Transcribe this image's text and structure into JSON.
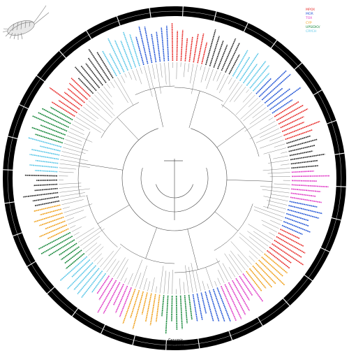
{
  "legend": {
    "items": [
      {
        "label": "MPOX",
        "color": "#e8312f"
      },
      {
        "label": "MOR",
        "color": "#2a5bd7"
      },
      {
        "label": "TOX",
        "color": "#e040c8"
      },
      {
        "label": "CYP",
        "color": "#f0a21f"
      },
      {
        "label": "UPSIDIO/",
        "color": "#1b8a3e"
      },
      {
        "label": "CRYCH",
        "color": "#5ec8e8"
      }
    ]
  },
  "bottom_labels": {
    "line1": "Genomic",
    "line2": "Integrated"
  },
  "tree": {
    "leaf_count": 176,
    "ring_segments": 32,
    "colors": [
      "#e8312f",
      "#2a5bd7",
      "#e040c8",
      "#f0a21f",
      "#1b8a3e",
      "#5ec8e8",
      "#333333"
    ]
  }
}
